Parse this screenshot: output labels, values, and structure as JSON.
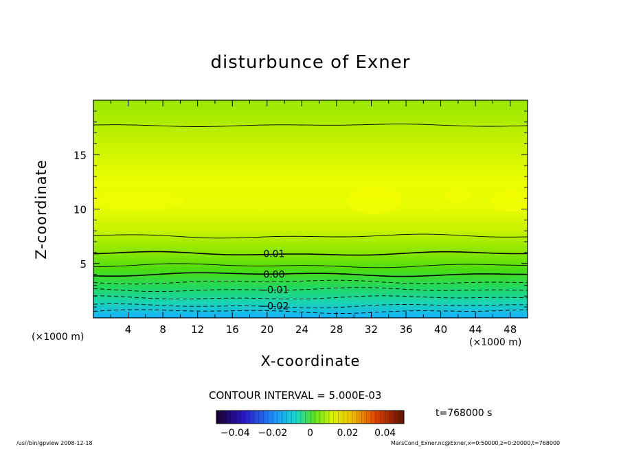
{
  "chart_data": {
    "type": "heatmap",
    "title": "disturbunce of Exner",
    "xlabel": "X-coordinate",
    "ylabel": "Z-coordinate",
    "x_unit_label": "(×1000 m)",
    "xlim": [
      0,
      50
    ],
    "ylim": [
      0,
      20
    ],
    "x_ticks": [
      4,
      8,
      12,
      16,
      20,
      24,
      28,
      32,
      36,
      40,
      44,
      48
    ],
    "y_ticks": [
      5,
      10,
      15
    ],
    "contour_interval_text": "CONTOUR INTERVAL = 5.000E-03",
    "time_text": "t=768000 s",
    "contour_levels": [
      {
        "value": -0.025,
        "z": 0.6,
        "style": "dashed"
      },
      {
        "value": -0.02,
        "z": 1.1,
        "style": "dashed",
        "label": "−0.02"
      },
      {
        "value": -0.015,
        "z": 1.85,
        "style": "dashed"
      },
      {
        "value": -0.01,
        "z": 2.6,
        "style": "dashed",
        "label": "−0.01"
      },
      {
        "value": -0.005,
        "z": 3.3,
        "style": "dashed"
      },
      {
        "value": 0.0,
        "z": 4.0,
        "style": "thick",
        "label": "0.00"
      },
      {
        "value": 0.005,
        "z": 4.8,
        "style": "solid"
      },
      {
        "value": 0.01,
        "z": 5.9,
        "style": "thick",
        "label": "0.01"
      },
      {
        "value": 0.015,
        "z": 7.5,
        "style": "solid"
      },
      {
        "value": 0.015,
        "z": 17.7,
        "style": "solid"
      }
    ],
    "colorbar": {
      "range": [
        -0.05,
        0.05
      ],
      "tick_labels": [
        "−0.04",
        "−0.02",
        "0",
        "0.02",
        "0.04"
      ],
      "tick_values": [
        -0.04,
        -0.02,
        0,
        0.02,
        0.04
      ]
    }
  },
  "footer": {
    "left": "/usr/bin/gpview   2008-12-18",
    "right": "MarsCond_Exner.nc@Exner,x=0:50000,z=0:20000,t=768000"
  },
  "colors": {
    "top": "#9ae800",
    "mid_max": "#eeff00",
    "lower": "#22dd22",
    "bottom": "#22aaff"
  }
}
